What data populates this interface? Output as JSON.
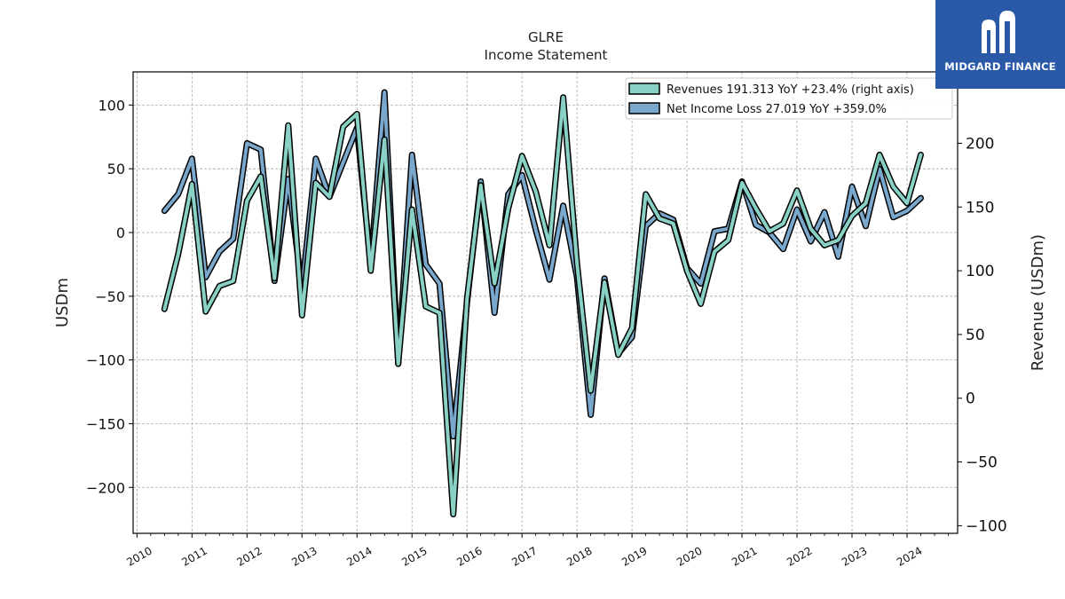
{
  "chart_data": {
    "type": "line",
    "title": "GLRE",
    "subtitle": "Income Statement",
    "ylabel_left": "USDm",
    "ylabel_right": "Revenue (USDm)",
    "x_ticks": [
      "2010",
      "2011",
      "2012",
      "2013",
      "2014",
      "2015",
      "2016",
      "2017",
      "2018",
      "2019",
      "2020",
      "2021",
      "2022",
      "2023",
      "2024"
    ],
    "y_left_ticks": [
      "100",
      "50",
      "0",
      "−50",
      "−100",
      "−150",
      "−200"
    ],
    "y_left_tick_values": [
      100,
      50,
      0,
      -50,
      -100,
      -150,
      -200
    ],
    "y_right_ticks": [
      "200",
      "150",
      "100",
      "50",
      "0",
      "−50",
      "−100"
    ],
    "y_right_tick_values": [
      200,
      150,
      100,
      50,
      0,
      -50,
      -100
    ],
    "ylim_left": [
      -236,
      126
    ],
    "ylim_right": [
      -106,
      256
    ],
    "xlim": [
      2009.93,
      2024.92
    ],
    "grid": true,
    "legend_position": "top-right",
    "legend": [
      "Revenues  191.313 YoY +23.4% (right axis)",
      "Net Income Loss  27.019 YoY +359.0%"
    ],
    "series": [
      {
        "name": "Revenues",
        "axis": "right",
        "color": "#88d1c4",
        "x": [
          2010.5,
          2010.75,
          2011.0,
          2011.25,
          2011.5,
          2011.75,
          2012.0,
          2012.25,
          2012.5,
          2012.75,
          2013.0,
          2013.25,
          2013.5,
          2013.75,
          2014.0,
          2014.25,
          2014.5,
          2014.75,
          2015.0,
          2015.25,
          2015.5,
          2015.75,
          2016.0,
          2016.25,
          2016.5,
          2016.75,
          2017.0,
          2017.25,
          2017.5,
          2017.75,
          2018.0,
          2018.25,
          2018.5,
          2018.75,
          2019.0,
          2019.25,
          2019.5,
          2019.75,
          2020.0,
          2020.25,
          2020.5,
          2020.75,
          2021.0,
          2021.25,
          2021.5,
          2021.75,
          2022.0,
          2022.25,
          2022.5,
          2022.75,
          2023.0,
          2023.25,
          2023.5,
          2023.75,
          2024.0,
          2024.25
        ],
        "y": [
          70,
          113,
          168,
          68,
          88,
          92,
          155,
          174,
          94,
          214,
          65,
          169,
          158,
          213,
          223,
          100,
          203,
          27,
          148,
          72,
          67,
          -91,
          78,
          167,
          90,
          149,
          190,
          162,
          120,
          236,
          106,
          6,
          91,
          34,
          55,
          160,
          141,
          137,
          100,
          74,
          115,
          124,
          169,
          149,
          131,
          137,
          163,
          133,
          120,
          124,
          143,
          153,
          191,
          166,
          153,
          191
        ]
      },
      {
        "name": "Net Income Loss",
        "axis": "left",
        "color": "#7aa7cc",
        "x": [
          2010.5,
          2010.75,
          2011.0,
          2011.25,
          2011.5,
          2011.75,
          2012.0,
          2012.25,
          2012.5,
          2012.75,
          2013.0,
          2013.25,
          2013.5,
          2013.75,
          2014.0,
          2014.25,
          2014.5,
          2014.75,
          2015.0,
          2015.25,
          2015.5,
          2015.75,
          2016.0,
          2016.25,
          2016.5,
          2016.75,
          2017.0,
          2017.25,
          2017.5,
          2017.75,
          2018.0,
          2018.25,
          2018.5,
          2018.75,
          2019.0,
          2019.25,
          2019.5,
          2019.75,
          2020.0,
          2020.25,
          2020.5,
          2020.75,
          2021.0,
          2021.25,
          2021.5,
          2021.75,
          2022.0,
          2022.25,
          2022.5,
          2022.75,
          2023.0,
          2023.25,
          2023.5,
          2023.75,
          2024.0,
          2024.25
        ],
        "y": [
          17,
          30,
          58,
          -35,
          -15,
          -5,
          70,
          65,
          -38,
          42,
          -45,
          58,
          28,
          55,
          82,
          -25,
          110,
          -103,
          61,
          -25,
          -40,
          -160,
          -55,
          40,
          -63,
          30,
          45,
          2,
          -37,
          21,
          -35,
          -143,
          -36,
          -95,
          -82,
          5,
          15,
          10,
          -28,
          -40,
          1,
          3,
          40,
          6,
          0,
          -13,
          18,
          -7,
          16,
          -19,
          36,
          5,
          50,
          12,
          17,
          27
        ]
      }
    ]
  },
  "logo": {
    "text": "MIDGARD FINANCE",
    "color": "#2a5aa7"
  }
}
